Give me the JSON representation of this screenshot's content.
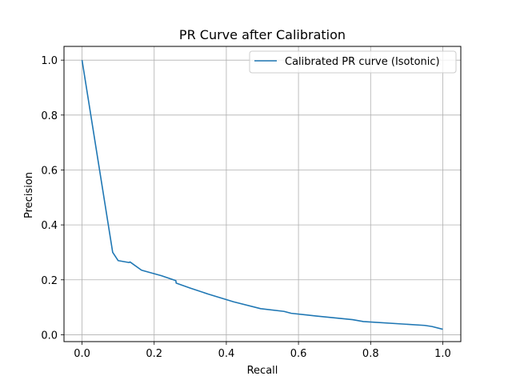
{
  "chart_data": {
    "type": "line",
    "title": "PR Curve after Calibration",
    "xlabel": "Recall",
    "ylabel": "Precision",
    "xlim": [
      -0.05,
      1.05
    ],
    "ylim": [
      -0.025,
      1.05
    ],
    "xticks": [
      0.0,
      0.2,
      0.4,
      0.6,
      0.8,
      1.0
    ],
    "yticks": [
      0.0,
      0.2,
      0.4,
      0.6,
      0.8,
      1.0
    ],
    "xtick_labels": [
      "0.0",
      "0.2",
      "0.4",
      "0.6",
      "0.8",
      "1.0"
    ],
    "ytick_labels": [
      "0.0",
      "0.2",
      "0.4",
      "0.6",
      "0.8",
      "1.0"
    ],
    "grid": true,
    "legend_position": "top-right",
    "series": [
      {
        "name": "Calibrated PR curve (Isotonic)",
        "color": "#1f77b4",
        "x": [
          0.0,
          0.085,
          0.1,
          0.13,
          0.133,
          0.165,
          0.22,
          0.26,
          0.261,
          0.3,
          0.35,
          0.42,
          0.495,
          0.56,
          0.58,
          0.65,
          0.75,
          0.78,
          0.95,
          0.97,
          1.0
        ],
        "y": [
          1.0,
          0.3,
          0.27,
          0.263,
          0.265,
          0.235,
          0.215,
          0.197,
          0.188,
          0.17,
          0.148,
          0.12,
          0.095,
          0.085,
          0.078,
          0.068,
          0.055,
          0.048,
          0.034,
          0.03,
          0.02
        ]
      }
    ]
  }
}
